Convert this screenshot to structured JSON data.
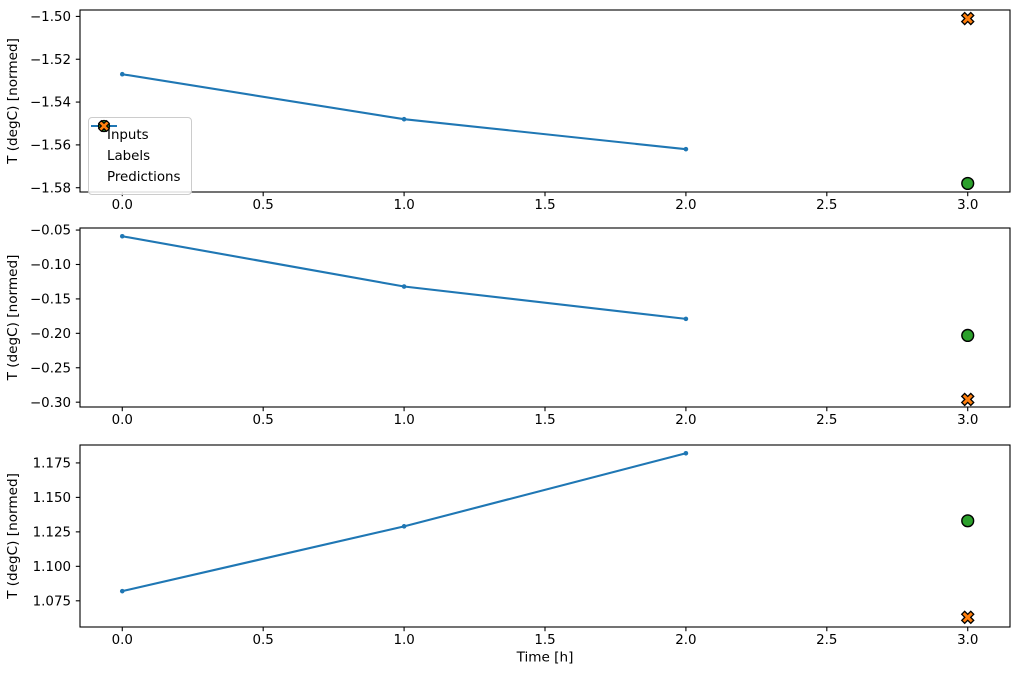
{
  "figure": {
    "background": "#ffffff",
    "xlabel": "Time [h]",
    "colors": {
      "inputs": "#1f77b4",
      "labels": "#2ca02c",
      "predictions": "#ff7f0e",
      "marker_edge": "#000000",
      "text": "#000000",
      "spine": "#000000",
      "legend_border": "#cccccc"
    },
    "legend": {
      "position": "upper-left-of-first-subplot",
      "entries": [
        {
          "label": "Inputs",
          "marker": "line-dot",
          "color_key": "inputs"
        },
        {
          "label": "Labels",
          "marker": "circle",
          "color_key": "labels"
        },
        {
          "label": "Predictions",
          "marker": "x-cross",
          "color_key": "predictions"
        }
      ]
    }
  },
  "chart_data": [
    {
      "type": "line",
      "title": "",
      "xlabel": "",
      "ylabel": "T (degC) [normed]",
      "grid": false,
      "legend_visible": true,
      "xlim": [
        -0.15,
        3.15
      ],
      "ylim": [
        -1.582,
        -1.497
      ],
      "x_ticks": [
        {
          "v": 0.0,
          "label": "0.0"
        },
        {
          "v": 0.5,
          "label": "0.5"
        },
        {
          "v": 1.0,
          "label": "1.0"
        },
        {
          "v": 1.5,
          "label": "1.5"
        },
        {
          "v": 2.0,
          "label": "2.0"
        },
        {
          "v": 2.5,
          "label": "2.5"
        },
        {
          "v": 3.0,
          "label": "3.0"
        }
      ],
      "y_ticks": [
        {
          "v": -1.5,
          "label": "−1.50"
        },
        {
          "v": -1.52,
          "label": "−1.52"
        },
        {
          "v": -1.54,
          "label": "−1.54"
        },
        {
          "v": -1.56,
          "label": "−1.56"
        },
        {
          "v": -1.58,
          "label": "−1.58"
        }
      ],
      "series": [
        {
          "name": "Inputs",
          "style": "line-dot",
          "color_key": "inputs",
          "x": [
            0.0,
            1.0,
            2.0
          ],
          "y": [
            -1.527,
            -1.548,
            -1.562
          ]
        },
        {
          "name": "Labels",
          "style": "circle",
          "color_key": "labels",
          "x": [
            3.0
          ],
          "y": [
            -1.578
          ]
        },
        {
          "name": "Predictions",
          "style": "x-cross",
          "color_key": "predictions",
          "x": [
            3.0
          ],
          "y": [
            -1.501
          ]
        }
      ]
    },
    {
      "type": "line",
      "title": "",
      "xlabel": "",
      "ylabel": "T (degC) [normed]",
      "grid": false,
      "legend_visible": false,
      "xlim": [
        -0.15,
        3.15
      ],
      "ylim": [
        -0.307,
        -0.047
      ],
      "x_ticks": [
        {
          "v": 0.0,
          "label": "0.0"
        },
        {
          "v": 0.5,
          "label": "0.5"
        },
        {
          "v": 1.0,
          "label": "1.0"
        },
        {
          "v": 1.5,
          "label": "1.5"
        },
        {
          "v": 2.0,
          "label": "2.0"
        },
        {
          "v": 2.5,
          "label": "2.5"
        },
        {
          "v": 3.0,
          "label": "3.0"
        }
      ],
      "y_ticks": [
        {
          "v": -0.05,
          "label": "−0.05"
        },
        {
          "v": -0.1,
          "label": "−0.10"
        },
        {
          "v": -0.15,
          "label": "−0.15"
        },
        {
          "v": -0.2,
          "label": "−0.20"
        },
        {
          "v": -0.25,
          "label": "−0.25"
        },
        {
          "v": -0.3,
          "label": "−0.30"
        }
      ],
      "series": [
        {
          "name": "Inputs",
          "style": "line-dot",
          "color_key": "inputs",
          "x": [
            0.0,
            1.0,
            2.0
          ],
          "y": [
            -0.059,
            -0.132,
            -0.179
          ]
        },
        {
          "name": "Labels",
          "style": "circle",
          "color_key": "labels",
          "x": [
            3.0
          ],
          "y": [
            -0.203
          ]
        },
        {
          "name": "Predictions",
          "style": "x-cross",
          "color_key": "predictions",
          "x": [
            3.0
          ],
          "y": [
            -0.296
          ]
        }
      ]
    },
    {
      "type": "line",
      "title": "",
      "xlabel": "Time [h]",
      "ylabel": "T (degC) [normed]",
      "grid": false,
      "legend_visible": false,
      "xlim": [
        -0.15,
        3.15
      ],
      "ylim": [
        1.056,
        1.188
      ],
      "x_ticks": [
        {
          "v": 0.0,
          "label": "0.0"
        },
        {
          "v": 0.5,
          "label": "0.5"
        },
        {
          "v": 1.0,
          "label": "1.0"
        },
        {
          "v": 1.5,
          "label": "1.5"
        },
        {
          "v": 2.0,
          "label": "2.0"
        },
        {
          "v": 2.5,
          "label": "2.5"
        },
        {
          "v": 3.0,
          "label": "3.0"
        }
      ],
      "y_ticks": [
        {
          "v": 1.075,
          "label": "1.075"
        },
        {
          "v": 1.1,
          "label": "1.100"
        },
        {
          "v": 1.125,
          "label": "1.125"
        },
        {
          "v": 1.15,
          "label": "1.150"
        },
        {
          "v": 1.175,
          "label": "1.175"
        }
      ],
      "series": [
        {
          "name": "Inputs",
          "style": "line-dot",
          "color_key": "inputs",
          "x": [
            0.0,
            1.0,
            2.0
          ],
          "y": [
            1.082,
            1.129,
            1.182
          ]
        },
        {
          "name": "Labels",
          "style": "circle",
          "color_key": "labels",
          "x": [
            3.0
          ],
          "y": [
            1.133
          ]
        },
        {
          "name": "Predictions",
          "style": "x-cross",
          "color_key": "predictions",
          "x": [
            3.0
          ],
          "y": [
            1.063
          ]
        }
      ]
    }
  ]
}
